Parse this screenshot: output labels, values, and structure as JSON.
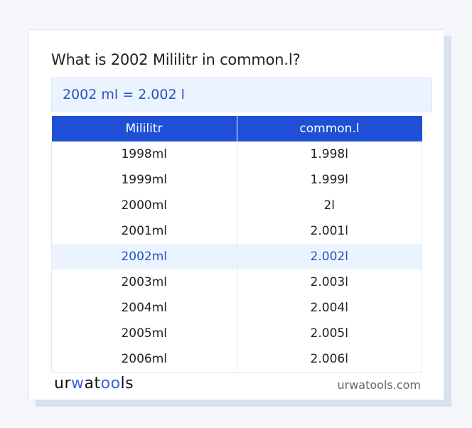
{
  "question": "What is 2002 Mililitr in common.l?",
  "result": "2002 ml = 2.002 l",
  "table": {
    "headers": [
      "Mililitr",
      "common.l"
    ],
    "rows": [
      [
        "1998ml",
        "1.998l"
      ],
      [
        "1999ml",
        "1.999l"
      ],
      [
        "2000ml",
        "2l"
      ],
      [
        "2001ml",
        "2.001l"
      ],
      [
        "2002ml",
        "2.002l"
      ],
      [
        "2003ml",
        "2.003l"
      ],
      [
        "2004ml",
        "2.004l"
      ],
      [
        "2005ml",
        "2.005l"
      ],
      [
        "2006ml",
        "2.006l"
      ]
    ],
    "highlight_row": 4
  },
  "footer": {
    "logo_parts": [
      "ur",
      "w",
      "at",
      "oo",
      "ls"
    ],
    "site": "urwatools.com"
  },
  "colors": {
    "accent": "#1f4fd6",
    "highlight_bg": "#ebf4fe",
    "highlight_text": "#2654bf"
  }
}
